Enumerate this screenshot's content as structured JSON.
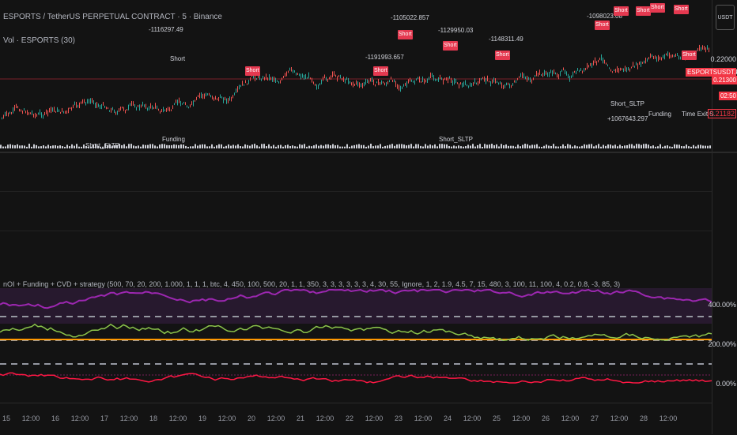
{
  "header": {
    "symbol_line": "ESPORTS / TetherUS PERPETUAL CONTRACT · 5 · Binance",
    "vol_line": "Vol · ESPORTS (30)"
  },
  "scale_button": "USDT",
  "price_scale": {
    "p1": "0.22000",
    "tag_symbol": "ESPORTSUSDT.P",
    "tag_price": "0.21300",
    "tag_timer": "02:50",
    "p_last": "0.21182"
  },
  "indicator": {
    "title": "nOI + Funding + CVD + strategy (500, 70, 20, 200, 1.000, 1, 1, 1, btc, 4, 450, 100, 500, 20, 1, 1, 350, 3, 3, 3, 3, 3, 3, 4, 30, 55, Ignore, 1, 2, 1.9, 4.5, 7, 15, 480, 3, 100, 11, 100, 4, 0.2, 0.8, -3, 85, 3)",
    "scale_400": "400.00%",
    "scale_200": "200.00%",
    "scale_0": "0.00%"
  },
  "time_axis": [
    "15",
    "12:00",
    "16",
    "12:00",
    "17",
    "12:00",
    "18",
    "12:00",
    "19",
    "12:00",
    "20",
    "12:00",
    "21",
    "12:00",
    "22",
    "12:00",
    "23",
    "12:00",
    "24",
    "12:00",
    "25",
    "12:00",
    "26",
    "12:00",
    "27",
    "12:00",
    "28",
    "12:00"
  ],
  "annotations": {
    "short_labels": [
      "Short",
      "Short",
      "Short",
      "Short",
      "Short",
      "Short",
      "Short",
      "Short",
      "Short",
      "Short",
      "Short"
    ],
    "values": [
      "-1116297.49",
      "-1191993.657",
      "-1105022.857",
      "-1129950.03",
      "-1148311.49",
      "-1098023.08",
      "Short_SLTP",
      "Funding",
      "Short_SLTP",
      "Funding",
      "Short_SLTP",
      "Short_SLTP",
      "+1067643.297",
      "Funding",
      "Time Exit S",
      "Short",
      "Short"
    ]
  },
  "colors": {
    "bg": "#131313",
    "up": "#26a69a",
    "down": "#ef5350",
    "short_tag": "#e53950",
    "signal_arrow": "#e040fb",
    "price_tag": "#f23645",
    "oi_line": "#9c27b0",
    "oi_line_hi": "#26c6da",
    "cvd_line": "#8bc34a",
    "orange_line": "#ff9800",
    "funding_pos": "#26a69a",
    "funding_neg": "#ff1744"
  }
}
